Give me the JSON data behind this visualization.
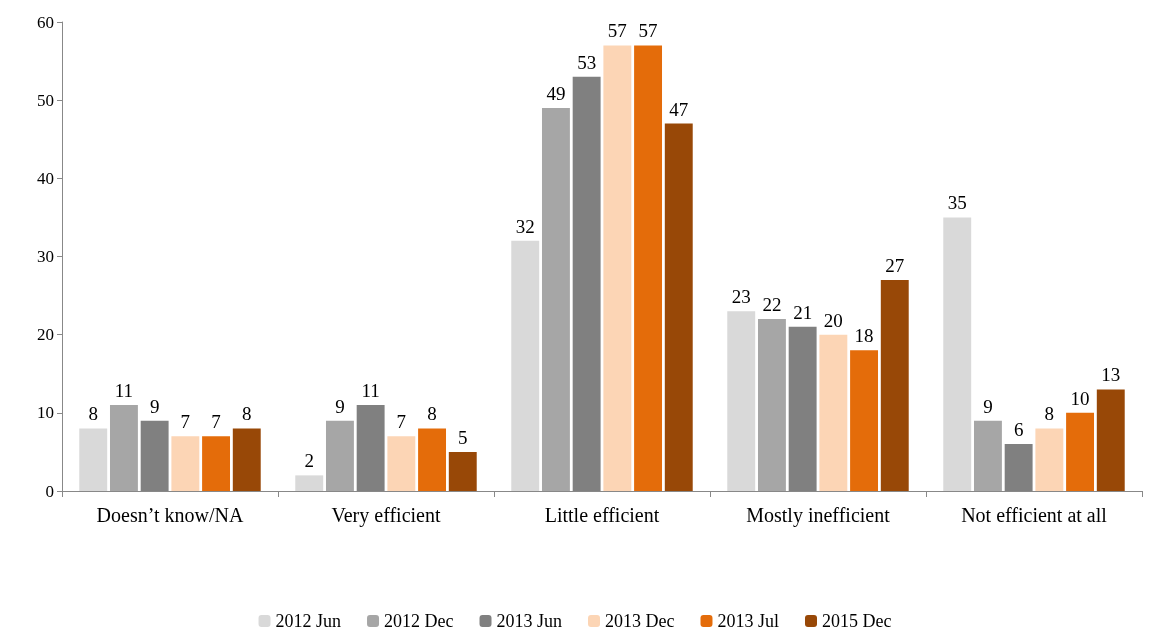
{
  "chart_data": {
    "type": "bar",
    "categories": [
      "Doesn’t know/NA",
      "Very efficient",
      "Little efficient",
      "Mostly inefficient",
      "Not efficient at all"
    ],
    "series": [
      {
        "name": "2012 Jun",
        "color": "#d9d9d9",
        "values": [
          8,
          2,
          32,
          23,
          35
        ]
      },
      {
        "name": "2012 Dec",
        "color": "#a6a6a6",
        "values": [
          11,
          9,
          49,
          22,
          9
        ]
      },
      {
        "name": "2013 Jun",
        "color": "#808080",
        "values": [
          9,
          11,
          53,
          21,
          6
        ]
      },
      {
        "name": "2013 Dec",
        "color": "#fcd5b5",
        "values": [
          7,
          7,
          57,
          20,
          8
        ]
      },
      {
        "name": "2013 Jul",
        "color": "#e46c0a",
        "values": [
          7,
          8,
          57,
          18,
          10
        ]
      },
      {
        "name": "2015 Dec",
        "color": "#984807",
        "values": [
          8,
          5,
          47,
          27,
          13
        ]
      }
    ],
    "ylim": [
      0,
      60
    ],
    "yticks": [
      0,
      10,
      20,
      30,
      40,
      50,
      60
    ],
    "grid": false,
    "legend": "bottom",
    "data_labels": true
  }
}
